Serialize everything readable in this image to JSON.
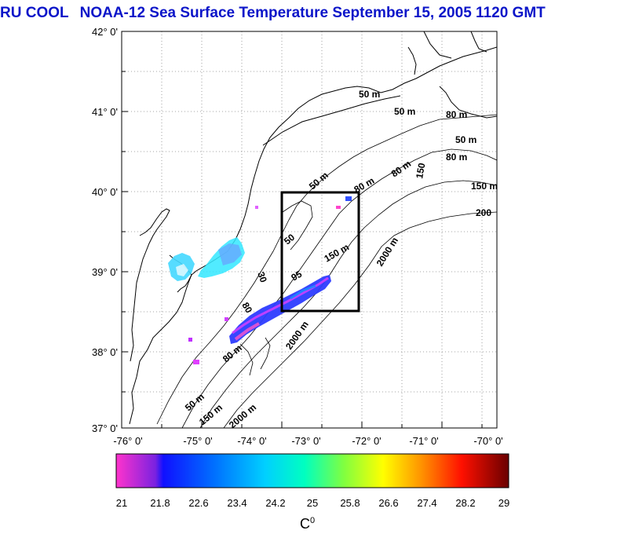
{
  "title": {
    "org": "RU COOL",
    "main": "NOAA-12 Sea Surface Temperature September 15, 2005 1120 GMT"
  },
  "latitude_ticks": [
    "42° 0'",
    "41° 0'",
    "40° 0'",
    "39° 0'",
    "38° 0'",
    "37° 0'"
  ],
  "longitude_ticks": [
    "-76° 0'",
    "-75° 0'",
    "-74° 0'",
    "-73° 0'",
    "-72° 0'",
    "-71° 0'",
    "-70° 0'"
  ],
  "contour_labels": {
    "c1": "50 m",
    "c2": "50 m",
    "c3": "80 m",
    "c4": "50 m",
    "c5": "80 m",
    "c6": "150 m",
    "c7": "200",
    "c8": "150",
    "c9": "80 m",
    "c10": "80 m",
    "c11": "50 m",
    "c12": "150 m",
    "c13": "2000 m",
    "c14": "50",
    "c15": "95",
    "c16": "30",
    "c17": "80",
    "c18": "2000 m",
    "c19": "80 m",
    "c20": "50 m",
    "c21": "150 m",
    "c22": "2000 m"
  },
  "colorbar": {
    "ticks": [
      "21",
      "21.8",
      "22.6",
      "23.4",
      "24.2",
      "25",
      "25.8",
      "26.6",
      "27.4",
      "28.2",
      "29"
    ],
    "unit_base": "C",
    "unit_sup": "0"
  },
  "colors": {
    "title": "#0b15c9",
    "box": "#000000"
  }
}
